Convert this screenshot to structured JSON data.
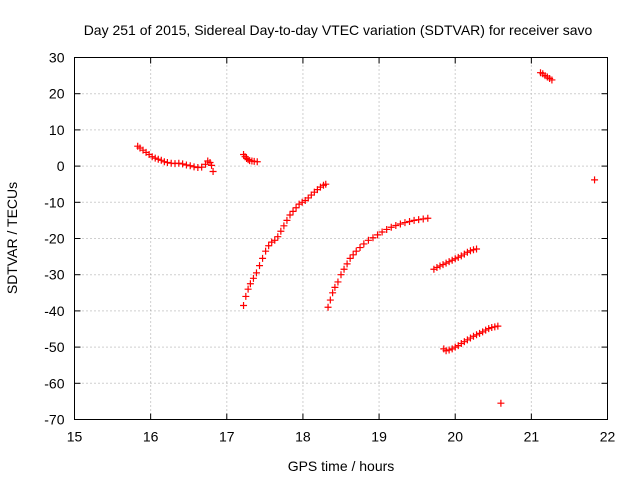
{
  "chart_data": {
    "type": "scatter",
    "title": "Day 251 of 2015, Sidereal Day-to-day VTEC variation (SDTVAR) for receiver savo",
    "xlabel": "GPS time / hours",
    "ylabel": "SDTVAR / TECUs",
    "xlim": [
      15,
      22
    ],
    "ylim": [
      -70,
      30
    ],
    "xticks": [
      15,
      16,
      17,
      18,
      19,
      20,
      21,
      22
    ],
    "yticks": [
      -70,
      -60,
      -50,
      -40,
      -30,
      -20,
      -10,
      0,
      10,
      20,
      30
    ],
    "grid": true,
    "marker": "+",
    "color": "#ff0000",
    "series": [
      {
        "x": [
          15.83,
          15.86,
          15.9,
          15.94,
          15.98,
          16.02,
          16.06,
          16.1,
          16.14,
          16.18,
          16.22,
          16.27,
          16.32,
          16.37,
          16.42,
          16.47,
          16.52,
          16.57,
          16.62,
          16.67,
          16.72,
          16.75,
          16.78,
          16.8,
          16.82
        ],
        "y": [
          5.5,
          5.0,
          4.4,
          3.8,
          3.2,
          2.6,
          2.2,
          1.9,
          1.6,
          1.2,
          1.0,
          0.8,
          0.7,
          0.8,
          0.6,
          0.3,
          0.1,
          -0.2,
          -0.4,
          -0.3,
          0.5,
          1.4,
          1.0,
          0.2,
          -1.5
        ]
      },
      {
        "x": [
          17.22,
          17.24,
          17.26,
          17.28,
          17.3,
          17.33,
          17.36,
          17.4
        ],
        "y": [
          3.2,
          2.6,
          2.1,
          1.8,
          1.5,
          1.4,
          1.3,
          1.2
        ]
      },
      {
        "x": [
          17.22,
          17.25,
          17.28,
          17.31,
          17.35,
          17.39,
          17.43,
          17.47,
          17.51,
          17.55,
          17.59,
          17.63,
          17.67,
          17.71,
          17.75,
          17.79,
          17.83,
          17.87,
          17.91,
          17.95,
          17.99,
          18.03,
          18.07,
          18.11,
          18.15,
          18.19,
          18.23,
          18.27,
          18.3
        ],
        "y": [
          -38.5,
          -36.0,
          -34.0,
          -32.5,
          -31.0,
          -29.5,
          -27.5,
          -25.5,
          -23.5,
          -22.0,
          -21.0,
          -20.5,
          -19.5,
          -18.0,
          -16.5,
          -15.0,
          -13.5,
          -12.5,
          -11.5,
          -10.5,
          -10.0,
          -9.5,
          -8.8,
          -8.0,
          -7.2,
          -6.5,
          -5.8,
          -5.3,
          -5.0
        ]
      },
      {
        "x": [
          18.33,
          18.36,
          18.39,
          18.42,
          18.46,
          18.5,
          18.54,
          18.58,
          18.62,
          18.66,
          18.7,
          18.75,
          18.8,
          18.86,
          18.92,
          18.98,
          19.04,
          19.1,
          19.16,
          19.22,
          19.28,
          19.34,
          19.4,
          19.46,
          19.52,
          19.58,
          19.64
        ],
        "y": [
          -39.0,
          -37.0,
          -35.0,
          -33.5,
          -32.0,
          -30.0,
          -28.5,
          -27.0,
          -25.5,
          -24.5,
          -23.5,
          -22.5,
          -21.5,
          -20.5,
          -19.8,
          -19.0,
          -18.2,
          -17.5,
          -16.9,
          -16.4,
          -16.0,
          -15.6,
          -15.3,
          -15.0,
          -14.8,
          -14.6,
          -14.4
        ]
      },
      {
        "x": [
          19.72,
          19.76,
          19.8,
          19.84,
          19.88,
          19.92,
          19.96,
          20.0,
          20.04,
          20.08,
          20.12,
          20.16,
          20.2,
          20.24,
          20.28
        ],
        "y": [
          -28.5,
          -28.0,
          -27.6,
          -27.2,
          -26.8,
          -26.4,
          -26.0,
          -25.6,
          -25.2,
          -24.8,
          -24.3,
          -23.8,
          -23.4,
          -23.1,
          -22.9
        ]
      },
      {
        "x": [
          19.85,
          19.88,
          19.92,
          19.96,
          20.0,
          20.04,
          20.08,
          20.12,
          20.16,
          20.2,
          20.24,
          20.28,
          20.32,
          20.36,
          20.4,
          20.44,
          20.48,
          20.52,
          20.56
        ],
        "y": [
          -50.5,
          -51.0,
          -50.8,
          -50.5,
          -50.0,
          -49.6,
          -49.0,
          -48.5,
          -48.0,
          -47.5,
          -47.0,
          -46.6,
          -46.2,
          -45.8,
          -45.3,
          -44.9,
          -44.6,
          -44.4,
          -44.2
        ]
      },
      {
        "x": [
          20.6
        ],
        "y": [
          -65.5
        ]
      },
      {
        "x": [
          21.12,
          21.15,
          21.18,
          21.21,
          21.24,
          21.27
        ],
        "y": [
          25.8,
          25.5,
          25.0,
          24.6,
          24.2,
          23.8
        ]
      },
      {
        "x": [
          21.83
        ],
        "y": [
          -3.8
        ]
      }
    ]
  }
}
